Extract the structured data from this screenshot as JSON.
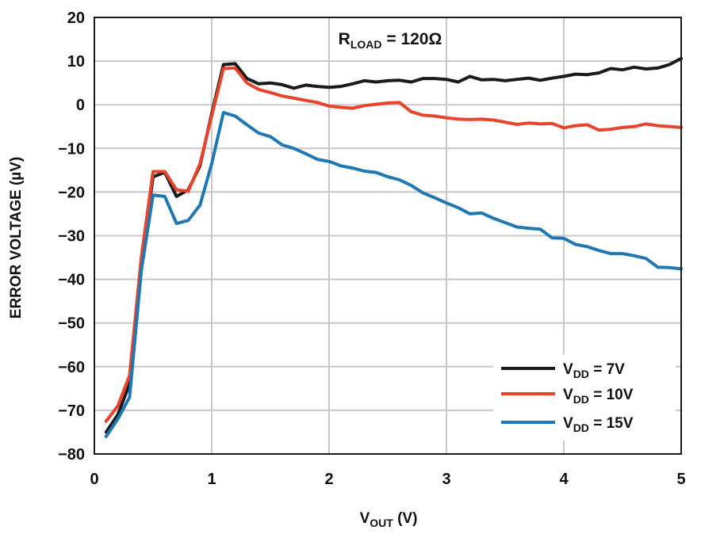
{
  "chart_data": {
    "type": "line",
    "title": "",
    "annotation": {
      "main": "R",
      "sub": "LOAD",
      "rest": " = 120Ω"
    },
    "xlabel": {
      "main": "V",
      "sub": "OUT",
      "rest": " (V)"
    },
    "ylabel": "ERROR VOLTAGE (µV)",
    "xlim": [
      0,
      5
    ],
    "ylim": [
      -80,
      20
    ],
    "x_ticks": [
      0,
      1,
      2,
      3,
      4,
      5
    ],
    "x_tick_labels": [
      "0",
      "1",
      "2",
      "3",
      "4",
      "5"
    ],
    "y_ticks": [
      20,
      10,
      0,
      -10,
      -20,
      -30,
      -40,
      -50,
      -60,
      -70,
      -80
    ],
    "y_tick_labels": [
      "20",
      "10",
      "0",
      "−10",
      "−20",
      "−30",
      "−40",
      "−50",
      "−60",
      "−70",
      "−80"
    ],
    "grid": true,
    "legend_position": "bottom-right",
    "x": [
      0.1,
      0.2,
      0.3,
      0.4,
      0.5,
      0.6,
      0.7,
      0.8,
      0.9,
      1.0,
      1.1,
      1.2,
      1.3,
      1.4,
      1.5,
      1.6,
      1.7,
      1.8,
      1.9,
      2.0,
      2.1,
      2.2,
      2.3,
      2.4,
      2.5,
      2.6,
      2.7,
      2.8,
      2.9,
      3.0,
      3.1,
      3.2,
      3.3,
      3.4,
      3.5,
      3.6,
      3.7,
      3.8,
      3.9,
      4.0,
      4.1,
      4.2,
      4.3,
      4.4,
      4.5,
      4.6,
      4.7,
      4.8,
      4.9,
      5.0
    ],
    "series": [
      {
        "name_main": "V",
        "name_sub": "DD",
        "name_rest": " = 7V",
        "color": "#1a1a1a",
        "values": [
          -75,
          -71,
          -64,
          -36,
          -16.5,
          -15.5,
          -21,
          -19.5,
          -14,
          -2,
          9.2,
          9.4,
          6,
          4.8,
          5,
          4.6,
          3.8,
          4.5,
          4.2,
          4,
          4.2,
          4.8,
          5.5,
          5.2,
          5.5,
          5.6,
          5.2,
          6,
          6,
          5.8,
          5.2,
          6.5,
          5.7,
          5.8,
          5.5,
          5.8,
          6.1,
          5.6,
          6.1,
          6.5,
          7,
          6.9,
          7.3,
          8.3,
          8,
          8.6,
          8.2,
          8.4,
          9.2,
          10.6
        ]
      },
      {
        "name_main": "V",
        "name_sub": "DD",
        "name_rest": " = 10V",
        "color": "#e8432c",
        "values": [
          -72.5,
          -69,
          -62,
          -35,
          -15.3,
          -15.3,
          -19.5,
          -19.8,
          -13.5,
          -2.5,
          8.3,
          8.4,
          5,
          3.5,
          2.8,
          2,
          1.5,
          1,
          0.5,
          -0.3,
          -0.6,
          -0.8,
          -0.2,
          0.1,
          0.4,
          0.5,
          -1.6,
          -2.4,
          -2.6,
          -3,
          -3.3,
          -3.4,
          -3.3,
          -3.5,
          -4,
          -4.5,
          -4.2,
          -4.4,
          -4.3,
          -5.3,
          -4.8,
          -4.6,
          -5.8,
          -5.6,
          -5.2,
          -5,
          -4.4,
          -4.8,
          -5,
          -5.2
        ]
      },
      {
        "name_main": "V",
        "name_sub": "DD",
        "name_rest": " = 15V",
        "color": "#1f78b4",
        "values": [
          -76,
          -72,
          -67,
          -38,
          -20.7,
          -21,
          -27.2,
          -26.5,
          -23,
          -13.5,
          -1.8,
          -2.6,
          -4.6,
          -6.5,
          -7.3,
          -9.2,
          -10,
          -11.2,
          -12.5,
          -13,
          -14,
          -14.5,
          -15.2,
          -15.5,
          -16.5,
          -17.2,
          -18.5,
          -20.2,
          -21.3,
          -22.5,
          -23.6,
          -25,
          -24.8,
          -26,
          -27,
          -28,
          -28.3,
          -28.5,
          -30.5,
          -30.6,
          -32,
          -32.5,
          -33.4,
          -34.1,
          -34.1,
          -34.6,
          -35.2,
          -37.2,
          -37.3,
          -37.6
        ]
      }
    ]
  }
}
